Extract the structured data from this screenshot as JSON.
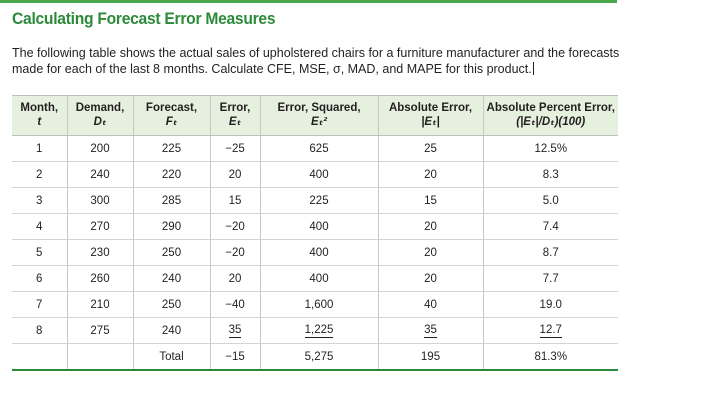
{
  "title": "Calculating Forecast Error Measures",
  "intro": "The following table shows the actual sales of upholstered chairs for a furniture manufacturer and the forecasts made for each of the last 8 months. Calculate CFE, MSE, σ, MAD, and MAPE for this product.",
  "colors": {
    "accent": "#2c8a3a",
    "header_bg": "#e6f0de",
    "topbar": "#4aa84a"
  },
  "table": {
    "headers": [
      {
        "label": "Month,",
        "sub": "t"
      },
      {
        "label": "Demand,",
        "sub": "Dₜ"
      },
      {
        "label": "Forecast,",
        "sub": "Fₜ"
      },
      {
        "label": "Error,",
        "sub": "Eₜ"
      },
      {
        "label": "Error, Squared,",
        "sub": "Eₜ²"
      },
      {
        "label": "Absolute Error,",
        "sub": "|Eₜ|"
      },
      {
        "label": "Absolute Percent Error,",
        "sub": "(|Eₜ|/Dₜ)(100)"
      }
    ],
    "rows": [
      [
        "1",
        "200",
        "225",
        "−25",
        "625",
        "25",
        "12.5%"
      ],
      [
        "2",
        "240",
        "220",
        "20",
        "400",
        "20",
        "8.3"
      ],
      [
        "3",
        "300",
        "285",
        "15",
        "225",
        "15",
        "5.0"
      ],
      [
        "4",
        "270",
        "290",
        "−20",
        "400",
        "20",
        "7.4"
      ],
      [
        "5",
        "230",
        "250",
        "−20",
        "400",
        "20",
        "8.7"
      ],
      [
        "6",
        "260",
        "240",
        "20",
        "400",
        "20",
        "7.7"
      ],
      [
        "7",
        "210",
        "250",
        "−40",
        "1,600",
        "40",
        "19.0"
      ],
      [
        "8",
        "275",
        "240",
        "35",
        "1,225",
        "35",
        "12.7"
      ]
    ],
    "total": [
      "",
      "",
      "Total",
      "−15",
      "5,275",
      "195",
      "81.3%"
    ]
  }
}
